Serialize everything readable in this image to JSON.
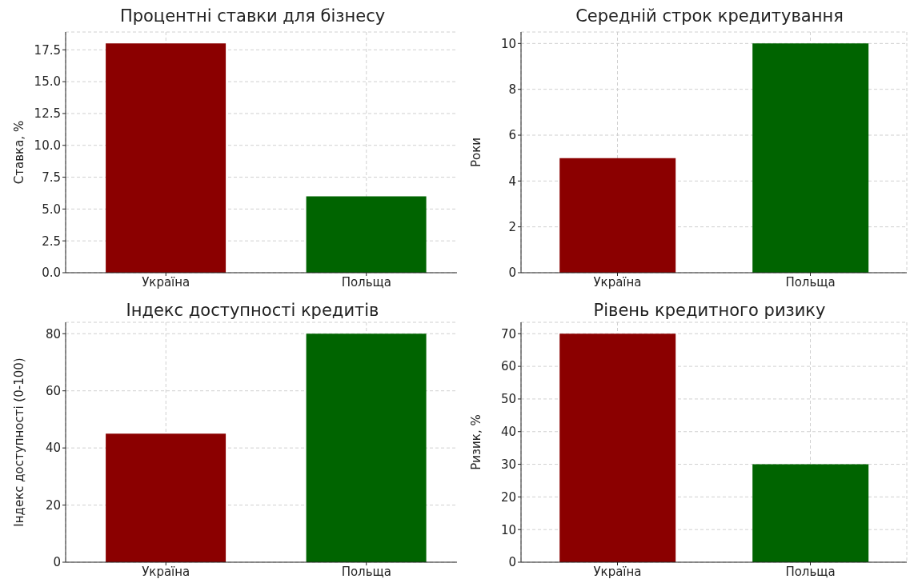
{
  "chart_data": [
    {
      "type": "bar",
      "title": "Процентні ставки для бізнесу",
      "ylabel": "Ставка, %",
      "categories": [
        "Україна",
        "Польща"
      ],
      "values": [
        18,
        6
      ],
      "colors": [
        "#8b0000",
        "#006400"
      ],
      "ylim": [
        0,
        18.9
      ],
      "yticks": [
        {
          "value": 0,
          "label": "0.0"
        },
        {
          "value": 2.5,
          "label": "2.5"
        },
        {
          "value": 5,
          "label": "5.0"
        },
        {
          "value": 7.5,
          "label": "7.5"
        },
        {
          "value": 10,
          "label": "10.0"
        },
        {
          "value": 12.5,
          "label": "12.5"
        },
        {
          "value": 15,
          "label": "15.0"
        },
        {
          "value": 17.5,
          "label": "17.5"
        }
      ],
      "grid": true
    },
    {
      "type": "bar",
      "title": "Середній строк кредитування",
      "ylabel": "Роки",
      "categories": [
        "Україна",
        "Польща"
      ],
      "values": [
        5,
        10
      ],
      "colors": [
        "#8b0000",
        "#006400"
      ],
      "ylim": [
        0,
        10.5
      ],
      "yticks": [
        0,
        2,
        4,
        6,
        8,
        10
      ],
      "grid": true
    },
    {
      "type": "bar",
      "title": "Індекс доступності кредитів",
      "ylabel": "Індекс доступності (0-100)",
      "categories": [
        "Україна",
        "Польща"
      ],
      "values": [
        45,
        80
      ],
      "colors": [
        "#8b0000",
        "#006400"
      ],
      "ylim": [
        0,
        84
      ],
      "yticks": [
        0,
        20,
        40,
        60,
        80
      ],
      "grid": true
    },
    {
      "type": "bar",
      "title": "Рівень кредитного ризику",
      "ylabel": "Ризик, %",
      "categories": [
        "Україна",
        "Польща"
      ],
      "values": [
        70,
        30
      ],
      "colors": [
        "#8b0000",
        "#006400"
      ],
      "ylim": [
        0,
        73.5
      ],
      "yticks": [
        0,
        10,
        20,
        30,
        40,
        50,
        60,
        70
      ],
      "grid": true
    }
  ]
}
